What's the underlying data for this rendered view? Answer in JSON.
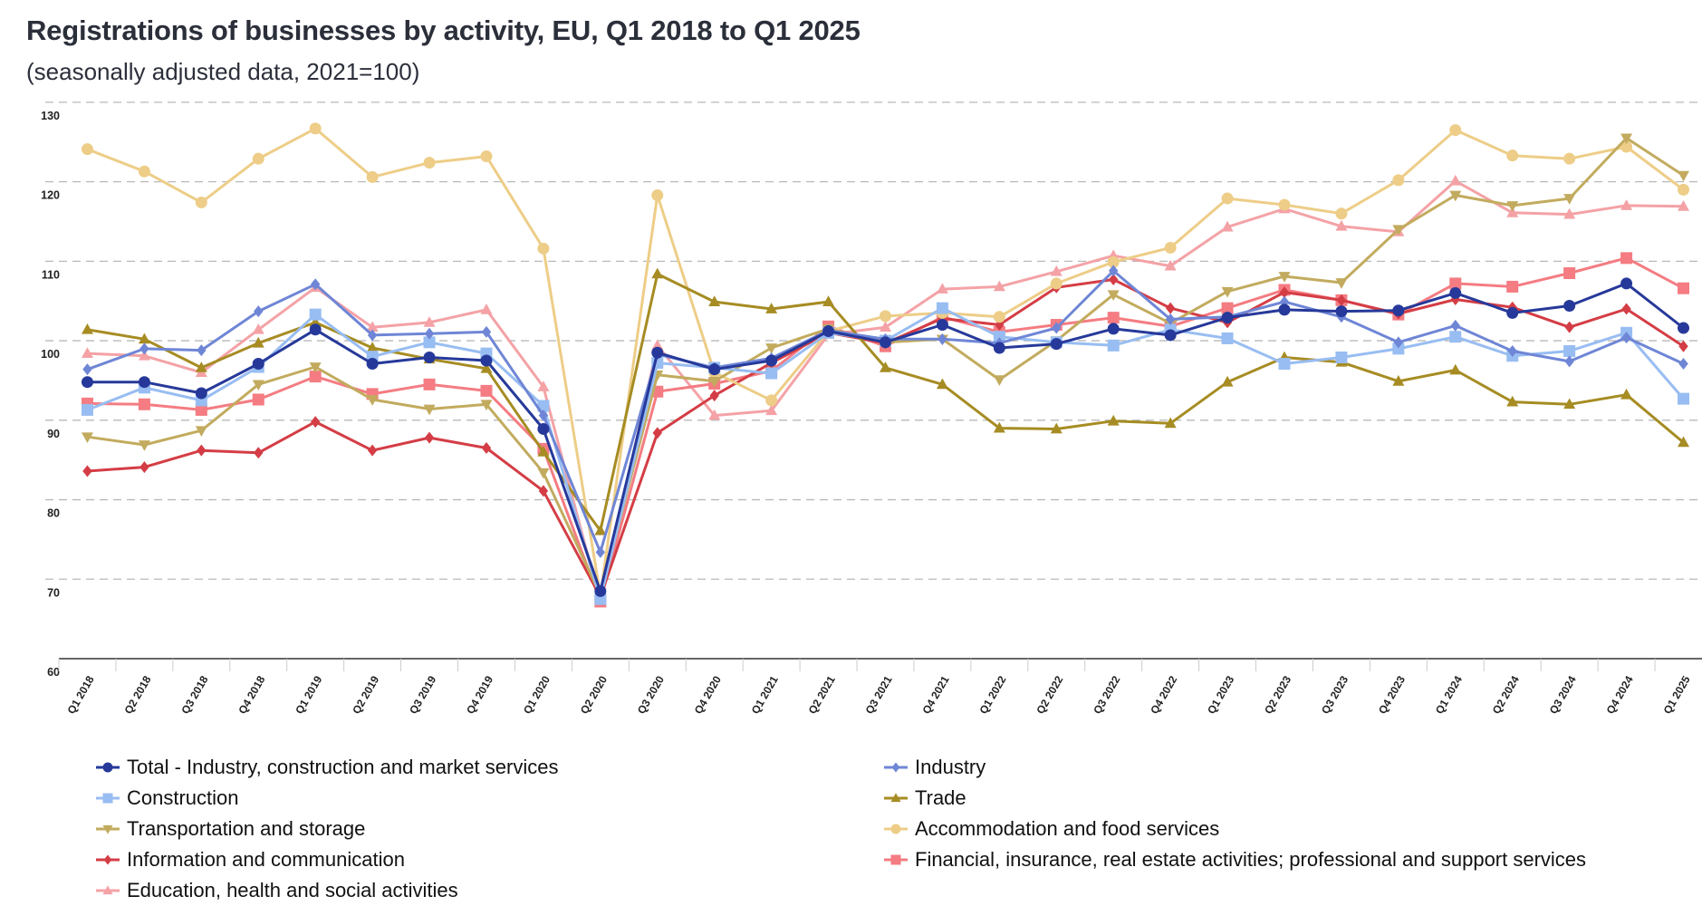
{
  "header": {
    "title": "Registrations of businesses by activity, EU, Q1 2018 to Q1 2025",
    "subtitle": "(seasonally adjusted data, 2021=100)"
  },
  "chart_data": {
    "type": "line",
    "title": "Registrations of businesses by activity, EU, Q1 2018 to Q1 2025",
    "subtitle": "(seasonally adjusted data, 2021=100)",
    "xlabel": "",
    "ylabel": "",
    "ylim": [
      60,
      130
    ],
    "yticks": [
      "60",
      "70",
      "80",
      "90",
      "100",
      "110",
      "120",
      "130"
    ],
    "grid": true,
    "legend_position": "bottom",
    "categories": [
      "Q1 2018",
      "Q2 2018",
      "Q3 2018",
      "Q4 2018",
      "Q1 2019",
      "Q2 2019",
      "Q3 2019",
      "Q4 2019",
      "Q1 2020",
      "Q2 2020",
      "Q3 2020",
      "Q4 2020",
      "Q1 2021",
      "Q2 2021",
      "Q3 2021",
      "Q4 2021",
      "Q1 2022",
      "Q2 2022",
      "Q3 2022",
      "Q4 2022",
      "Q1 2023",
      "Q2 2023",
      "Q3 2023",
      "Q4 2023",
      "Q1 2024",
      "Q2 2024",
      "Q3 2024",
      "Q4 2024",
      "Q1 2025"
    ],
    "series": [
      {
        "name": "Total - Industry, construction and market services",
        "color": "#26399a",
        "marker": "circle",
        "values": [
          94.8,
          94.8,
          93.4,
          97.1,
          101.4,
          97.1,
          97.9,
          97.5,
          88.9,
          68.5,
          98.5,
          96.4,
          97.5,
          101.2,
          99.8,
          102.0,
          99.1,
          99.6,
          101.5,
          100.7,
          102.9,
          103.9,
          103.7,
          103.8,
          106.0,
          103.5,
          104.4,
          107.2,
          101.6
        ]
      },
      {
        "name": "Industry",
        "color": "#6f86d6",
        "marker": "diamond",
        "values": [
          96.4,
          99.0,
          98.8,
          103.7,
          107.1,
          100.7,
          100.9,
          101.1,
          90.6,
          73.4,
          98.3,
          96.6,
          97.8,
          101.3,
          100.2,
          100.2,
          99.7,
          101.6,
          108.8,
          102.7,
          103.0,
          104.9,
          103.0,
          99.8,
          101.9,
          98.7,
          97.4,
          100.4,
          97.1
        ]
      },
      {
        "name": "Construction",
        "color": "#98bdf2",
        "marker": "square",
        "values": [
          91.3,
          94.1,
          92.5,
          96.7,
          103.3,
          98.0,
          99.8,
          98.4,
          91.8,
          67.5,
          97.2,
          96.6,
          95.9,
          101.0,
          100.0,
          104.1,
          100.5,
          99.8,
          99.4,
          101.4,
          100.3,
          97.1,
          97.9,
          99.0,
          100.5,
          98.1,
          98.7,
          101.0,
          92.7
        ]
      },
      {
        "name": "Trade",
        "color": "#a68c23",
        "marker": "triangle-up",
        "values": [
          101.4,
          100.2,
          96.6,
          99.7,
          102.3,
          99.1,
          97.7,
          96.5,
          86.0,
          76.1,
          108.4,
          104.9,
          104.0,
          104.9,
          96.6,
          94.5,
          89.0,
          88.9,
          89.9,
          89.6,
          94.8,
          97.9,
          97.3,
          94.9,
          96.3,
          92.3,
          92.0,
          93.2,
          87.2
        ]
      },
      {
        "name": "Transportation and storage",
        "color": "#c2ab5e",
        "marker": "triangle-down",
        "values": [
          87.9,
          86.9,
          88.7,
          94.5,
          96.7,
          92.6,
          91.4,
          92.0,
          83.4,
          68.0,
          95.7,
          94.9,
          99.1,
          101.5,
          99.8,
          100.2,
          95.1,
          100.0,
          105.8,
          102.2,
          106.2,
          108.1,
          107.3,
          114.0,
          118.3,
          117.0,
          117.9,
          125.5,
          120.8
        ]
      },
      {
        "name": "Accommodation and food services",
        "color": "#edcd87",
        "marker": "circle",
        "values": [
          124.1,
          121.3,
          117.4,
          122.9,
          126.7,
          120.6,
          122.4,
          123.2,
          111.6,
          68.0,
          118.3,
          96.0,
          92.5,
          101.2,
          103.1,
          103.5,
          103.0,
          107.2,
          109.9,
          111.7,
          117.9,
          117.1,
          116.0,
          120.2,
          126.5,
          123.3,
          122.9,
          124.4,
          119.0
        ]
      },
      {
        "name": "Information and communication",
        "color": "#d43d45",
        "marker": "diamond",
        "values": [
          83.6,
          84.1,
          86.2,
          85.9,
          89.8,
          86.2,
          87.8,
          86.5,
          81.1,
          67.8,
          88.4,
          93.1,
          97.2,
          101.0,
          99.7,
          102.8,
          102.0,
          106.7,
          107.7,
          104.1,
          102.3,
          106.1,
          105.1,
          103.4,
          105.2,
          104.2,
          101.7,
          104.0,
          99.3
        ]
      },
      {
        "name": "Financial, insurance, real estate activities; professional and support services",
        "color": "#f47c82",
        "marker": "square",
        "values": [
          92.1,
          92.0,
          91.3,
          92.6,
          95.5,
          93.3,
          94.5,
          93.7,
          86.4,
          67.2,
          93.6,
          94.6,
          96.2,
          101.8,
          99.3,
          103.0,
          101.1,
          102.0,
          102.9,
          101.8,
          104.1,
          106.4,
          105.1,
          103.3,
          107.2,
          106.8,
          108.5,
          110.4,
          106.6
        ]
      },
      {
        "name": "Education, health and social activities",
        "color": "#f4a2a6",
        "marker": "triangle-up",
        "values": [
          98.4,
          98.1,
          96.0,
          101.4,
          106.7,
          101.7,
          102.3,
          103.9,
          94.2,
          67.0,
          99.4,
          90.6,
          91.2,
          100.8,
          101.7,
          106.5,
          106.8,
          108.7,
          110.7,
          109.4,
          114.3,
          116.6,
          114.4,
          113.7,
          120.1,
          116.1,
          115.9,
          117.0,
          116.9
        ]
      }
    ]
  },
  "legend": {
    "items": [
      {
        "label": "Total - Industry, construction and market services",
        "series": 0
      },
      {
        "label": "Industry",
        "series": 1
      },
      {
        "label": "Construction",
        "series": 2
      },
      {
        "label": "Trade",
        "series": 3
      },
      {
        "label": "Transportation and storage",
        "series": 4
      },
      {
        "label": "Accommodation and food services",
        "series": 5
      },
      {
        "label": "Information and communication",
        "series": 6
      },
      {
        "label": "Financial, insurance, real estate activities; professional and support services",
        "series": 7
      },
      {
        "label": "Education, health and social activities",
        "series": 8
      }
    ]
  }
}
